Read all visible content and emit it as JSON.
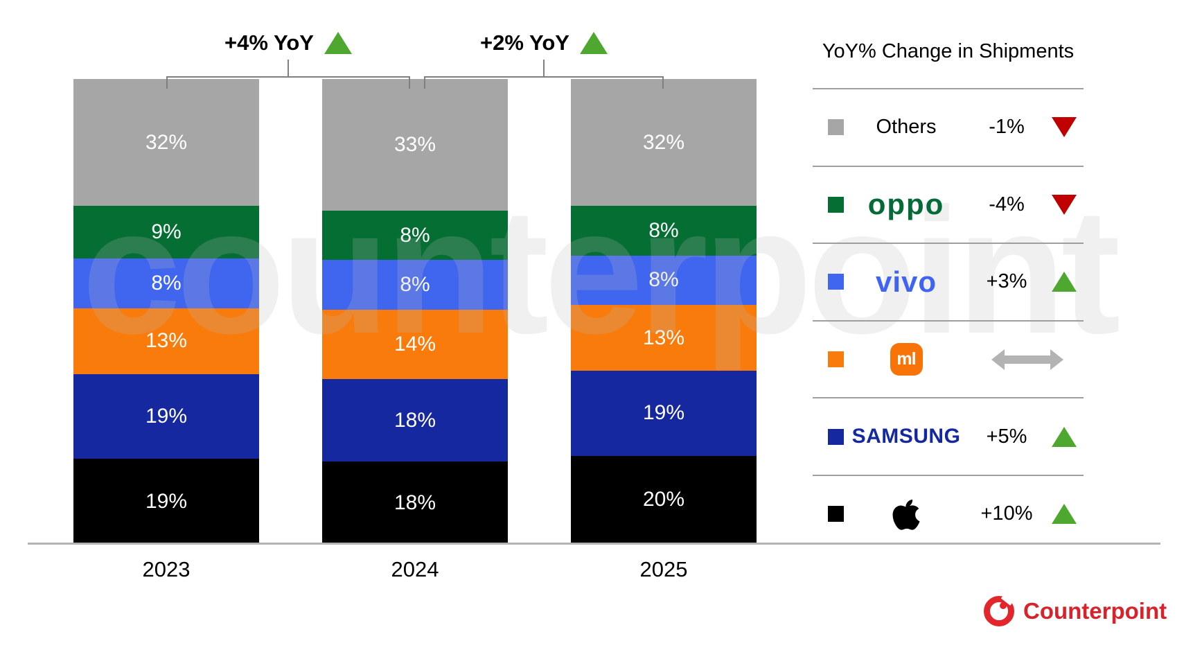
{
  "watermark": "counterpoint",
  "header_annotations": [
    {
      "label": "+4% YoY",
      "direction": "up"
    },
    {
      "label": "+2% YoY",
      "direction": "up"
    }
  ],
  "chart_data": {
    "type": "bar",
    "subtype": "stacked-100-percent",
    "stack_order": "top-to-bottom",
    "categories": [
      "2023",
      "2024",
      "2025"
    ],
    "series": [
      {
        "name": "Others",
        "color": "#a6a6a6",
        "values": [
          32,
          33,
          32
        ]
      },
      {
        "name": "OPPO",
        "color": "#056e33",
        "values": [
          9,
          8,
          8
        ]
      },
      {
        "name": "vivo",
        "color": "#4066f0",
        "values": [
          8,
          8,
          8
        ]
      },
      {
        "name": "Xiaomi",
        "color": "#f87b0b",
        "values": [
          13,
          14,
          13
        ]
      },
      {
        "name": "Samsung",
        "color": "#1628a0",
        "values": [
          19,
          18,
          19
        ]
      },
      {
        "name": "Apple",
        "color": "#000000",
        "values": [
          19,
          18,
          20
        ]
      }
    ],
    "value_suffix": "%",
    "totals_yoy": [
      {
        "between": [
          "2023",
          "2024"
        ],
        "change": "+4% YoY",
        "direction": "up"
      },
      {
        "between": [
          "2024",
          "2025"
        ],
        "change": "+2% YoY",
        "direction": "up"
      }
    ],
    "xlabel": "",
    "ylabel": "",
    "grid": false,
    "legend_position": "right"
  },
  "legend": {
    "title": "YoY% Change in Shipments",
    "rows": [
      {
        "brand": "Others",
        "logo": "text",
        "logo_text": "Others",
        "color": "#a6a6a6",
        "value": "-1%",
        "indicator": "down"
      },
      {
        "brand": "OPPO",
        "logo": "oppo",
        "logo_text": "oppo",
        "color": "#056e33",
        "value": "-4%",
        "indicator": "down"
      },
      {
        "brand": "vivo",
        "logo": "vivo",
        "logo_text": "vivo",
        "color": "#4066f0",
        "value": "+3%",
        "indicator": "up"
      },
      {
        "brand": "Xiaomi",
        "logo": "mi",
        "logo_text": "",
        "color": "#f87b0b",
        "value": "",
        "indicator": "flat"
      },
      {
        "brand": "Samsung",
        "logo": "samsung",
        "logo_text": "SAMSUNG",
        "color": "#1628a0",
        "value": "+5%",
        "indicator": "up"
      },
      {
        "brand": "Apple",
        "logo": "apple",
        "logo_text": "",
        "color": "#000000",
        "value": "+10%",
        "indicator": "up"
      }
    ]
  },
  "footer": {
    "brand": "Counterpoint"
  },
  "colors": {
    "up_triangle": "#4ea72e",
    "down_triangle": "#c00000",
    "flat_arrow": "#b3b3b3",
    "axis_line": "#b3b3b3",
    "bracket": "#7f7f7f",
    "separator": "#9e9e9e",
    "brand_red": "#d9232a",
    "oppo_green": "#046a38",
    "vivo_blue": "#3f63f4",
    "samsung_navy": "#1428a0",
    "mi_orange": "#f97408"
  }
}
